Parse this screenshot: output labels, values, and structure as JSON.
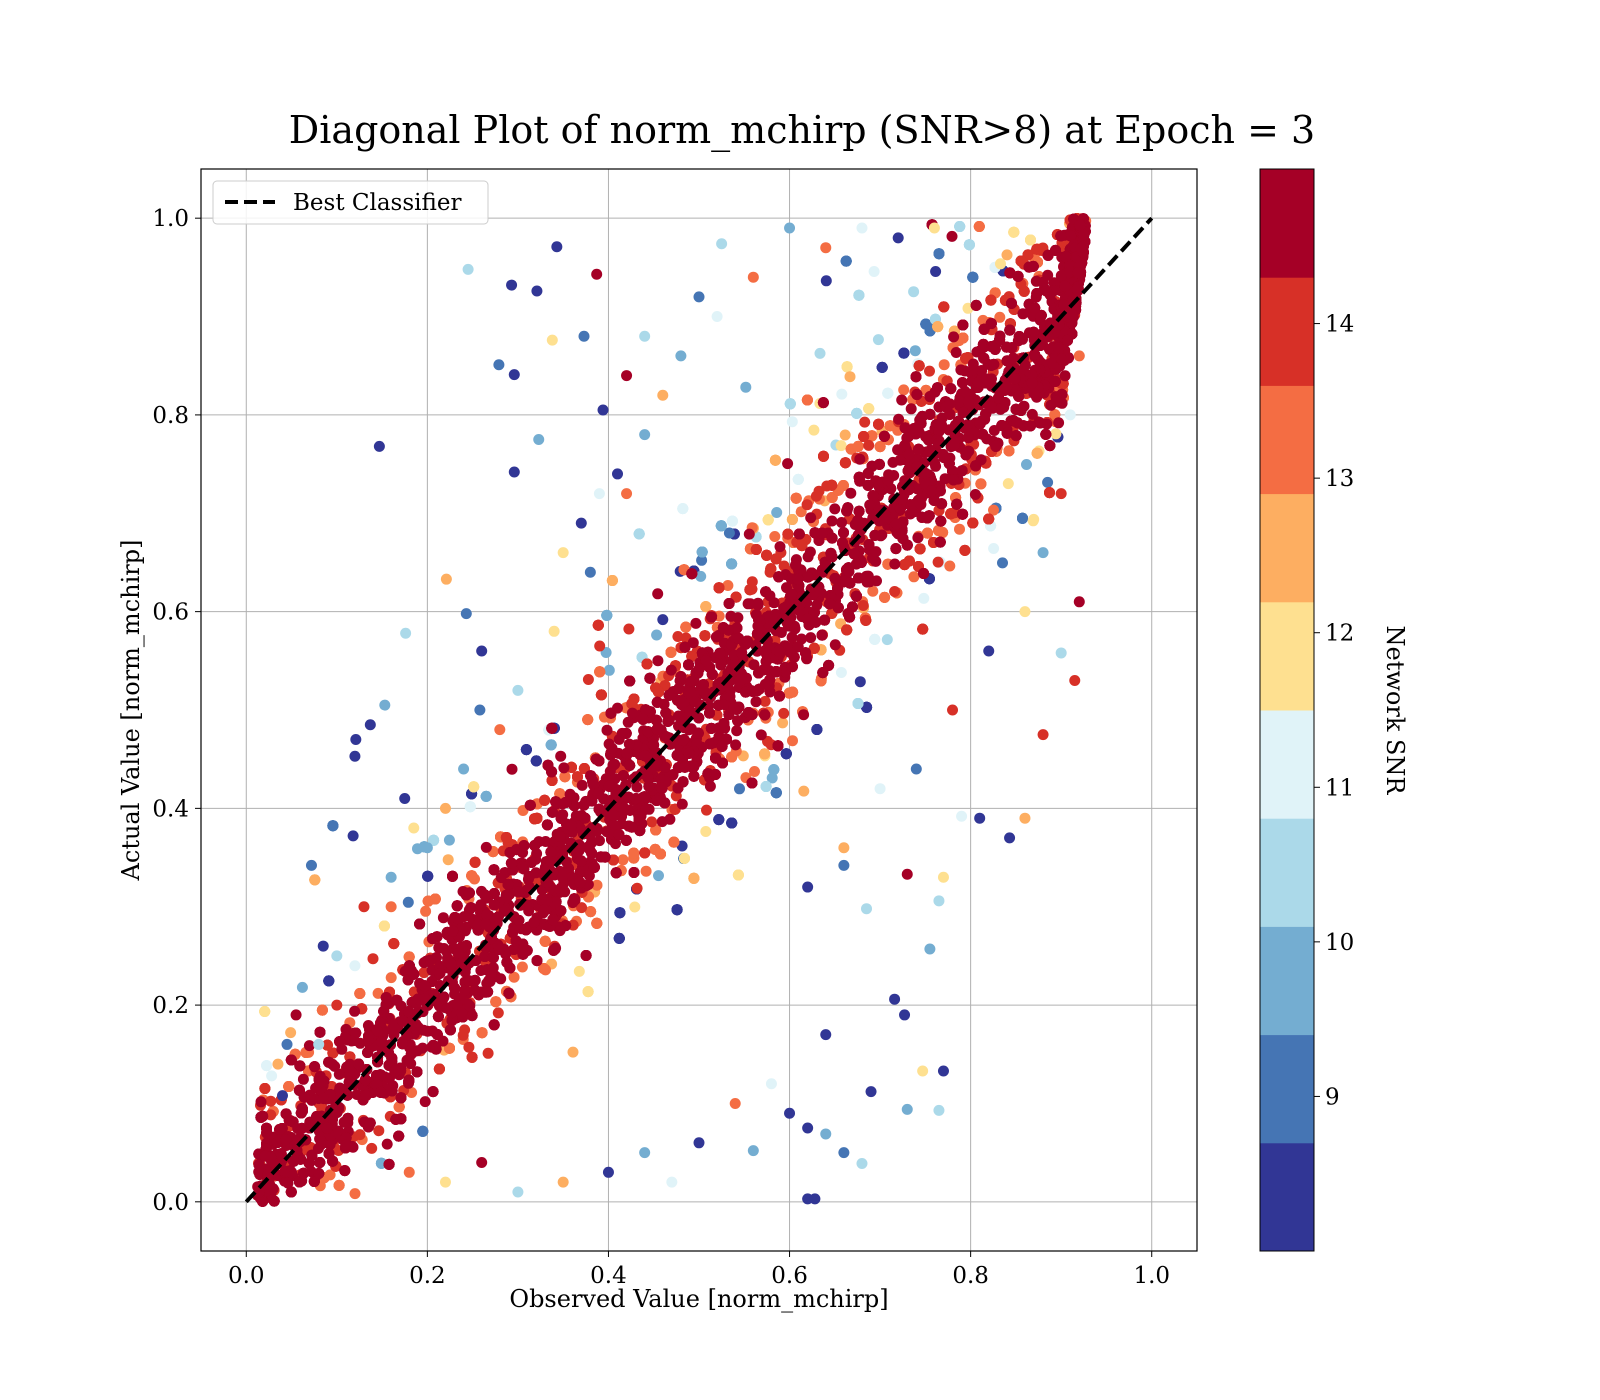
{
  "chart_data": {
    "type": "scatter",
    "title": "Diagonal Plot of norm_mchirp (SNR>8) at Epoch = 3",
    "xlabel": "Observed Value [norm_mchirp]",
    "ylabel": "Actual Value [norm_mchirp]",
    "xlim": [
      -0.05,
      1.05
    ],
    "ylim": [
      -0.05,
      1.05
    ],
    "xticks": [
      "0.0",
      "0.2",
      "0.4",
      "0.6",
      "0.8",
      "1.0"
    ],
    "yticks": [
      "0.0",
      "0.2",
      "0.4",
      "0.6",
      "0.8",
      "1.0"
    ],
    "grid": true,
    "legend": {
      "placement": "upper-left",
      "entries": [
        "Best Classifier"
      ]
    },
    "reference_line": {
      "name": "Best Classifier",
      "x": [
        0.0,
        1.0
      ],
      "y": [
        0.0,
        1.0
      ],
      "style": "dashed",
      "color": "#000000"
    },
    "colorbar": {
      "label": "Network SNR",
      "min": 8.0,
      "max": 15.0,
      "ticks": [
        9,
        10,
        11,
        12,
        13,
        14
      ],
      "tick_labels": [
        "9",
        "10",
        "11",
        "12",
        "13",
        "14"
      ],
      "colors": [
        "#313695",
        "#4575b4",
        "#74add1",
        "#abd9e9",
        "#e0f3f8",
        "#fee090",
        "#fdae61",
        "#f46d43",
        "#d73027",
        "#a50026"
      ]
    },
    "series": [
      {
        "color_by": "Network SNR",
        "points": [
          [
            0.147,
            0.768,
            8.3
          ],
          [
            0.245,
            0.948,
            10.4
          ],
          [
            0.343,
            0.971,
            8.2
          ],
          [
            0.293,
            0.932,
            8.1
          ],
          [
            0.387,
            0.943,
            14.9
          ],
          [
            0.321,
            0.926,
            8.3
          ],
          [
            0.279,
            0.851,
            9.2
          ],
          [
            0.296,
            0.841,
            8.2
          ],
          [
            0.323,
            0.775,
            10.1
          ],
          [
            0.394,
            0.805,
            8.4
          ],
          [
            0.296,
            0.742,
            8.3
          ],
          [
            0.221,
            0.633,
            12.8
          ],
          [
            0.176,
            0.578,
            10.5
          ],
          [
            0.243,
            0.598,
            8.9
          ],
          [
            0.153,
            0.505,
            9.8
          ],
          [
            0.121,
            0.47,
            8.5
          ],
          [
            0.137,
            0.485,
            8.3
          ],
          [
            0.12,
            0.453,
            8.1
          ],
          [
            0.118,
            0.372,
            8.3
          ],
          [
            0.072,
            0.342,
            9.1
          ],
          [
            0.062,
            0.218,
            9.5
          ],
          [
            0.049,
            0.172,
            12.6
          ],
          [
            0.028,
            0.128,
            10.9
          ],
          [
            0.04,
            0.108,
            8.4
          ],
          [
            0.05,
            0.03,
            14.7
          ],
          [
            0.56,
            0.052,
            9.9
          ],
          [
            0.62,
            0.075,
            8.1
          ],
          [
            0.64,
            0.069,
            9.6
          ],
          [
            0.69,
            0.112,
            8.4
          ],
          [
            0.716,
            0.206,
            8.3
          ],
          [
            0.727,
            0.19,
            8.1
          ],
          [
            0.77,
            0.133,
            8.2
          ],
          [
            0.747,
            0.133,
            12.2
          ],
          [
            0.765,
            0.093,
            10.6
          ],
          [
            0.73,
            0.094,
            9.7
          ],
          [
            0.68,
            0.039,
            10.5
          ],
          [
            0.66,
            0.05,
            9.3
          ],
          [
            0.64,
            0.17,
            8.2
          ],
          [
            0.62,
            0.003,
            8.2
          ],
          [
            0.628,
            0.003,
            8.4
          ],
          [
            0.843,
            0.37,
            8.6
          ],
          [
            0.81,
            0.39,
            8.2
          ],
          [
            0.79,
            0.392,
            11.3
          ],
          [
            0.77,
            0.33,
            11.5
          ],
          [
            0.765,
            0.306,
            10.4
          ],
          [
            0.755,
            0.257,
            9.8
          ],
          [
            0.685,
            0.298,
            10.3
          ],
          [
            0.66,
            0.342,
            8.8
          ],
          [
            0.73,
            0.333,
            14.8
          ],
          [
            0.915,
            0.53,
            13.8
          ],
          [
            0.9,
            0.558,
            10.2
          ],
          [
            0.92,
            0.61,
            14.9
          ],
          [
            0.88,
            0.475,
            14.2
          ],
          [
            0.86,
            0.39,
            12.3
          ],
          [
            0.525,
            0.974,
            10.3
          ],
          [
            0.5,
            0.92,
            8.9
          ],
          [
            0.44,
            0.88,
            10.7
          ],
          [
            0.42,
            0.84,
            14.4
          ],
          [
            0.41,
            0.74,
            8.3
          ],
          [
            0.39,
            0.72,
            11.1
          ],
          [
            0.37,
            0.69,
            8.5
          ],
          [
            0.35,
            0.66,
            12.1
          ],
          [
            0.338,
            0.876,
            11.8
          ],
          [
            0.373,
            0.88,
            9.2
          ],
          [
            0.26,
            0.56,
            8.2
          ],
          [
            0.258,
            0.5,
            8.9
          ],
          [
            0.175,
            0.41,
            8.1
          ],
          [
            0.185,
            0.38,
            11.6
          ],
          [
            0.16,
            0.33,
            9.4
          ],
          [
            0.13,
            0.3,
            13.8
          ],
          [
            0.1,
            0.25,
            10.6
          ],
          [
            0.085,
            0.26,
            8.2
          ],
          [
            0.055,
            0.19,
            14.3
          ],
          [
            0.045,
            0.16,
            9.3
          ],
          [
            0.035,
            0.14,
            12.4
          ],
          [
            0.6,
            0.09,
            8.3
          ],
          [
            0.58,
            0.12,
            10.8
          ],
          [
            0.54,
            0.1,
            13.1
          ],
          [
            0.5,
            0.06,
            8.5
          ],
          [
            0.47,
            0.02,
            11.4
          ],
          [
            0.44,
            0.05,
            9.5
          ],
          [
            0.4,
            0.03,
            8.7
          ],
          [
            0.35,
            0.02,
            12.6
          ],
          [
            0.3,
            0.01,
            10.2
          ],
          [
            0.26,
            0.04,
            14.6
          ],
          [
            0.22,
            0.02,
            11.9
          ],
          [
            0.18,
            0.03,
            13.4
          ],
          [
            0.62,
            0.32,
            8.4
          ],
          [
            0.66,
            0.36,
            12.7
          ],
          [
            0.7,
            0.42,
            10.9
          ],
          [
            0.74,
            0.44,
            9.1
          ],
          [
            0.78,
            0.5,
            13.7
          ],
          [
            0.82,
            0.56,
            8.6
          ],
          [
            0.86,
            0.6,
            12.2
          ],
          [
            0.88,
            0.66,
            9.9
          ],
          [
            0.9,
            0.72,
            14.1
          ],
          [
            0.91,
            0.8,
            11.2
          ],
          [
            0.92,
            0.86,
            13.3
          ],
          [
            0.6,
            0.99,
            9.7
          ],
          [
            0.64,
            0.97,
            12.9
          ],
          [
            0.68,
            0.99,
            10.8
          ],
          [
            0.72,
            0.98,
            8.5
          ],
          [
            0.76,
            0.99,
            11.7
          ],
          [
            0.56,
            0.94,
            13.6
          ],
          [
            0.52,
            0.9,
            11.1
          ],
          [
            0.48,
            0.86,
            9.4
          ],
          [
            0.46,
            0.82,
            12.4
          ],
          [
            0.44,
            0.78,
            10.1
          ],
          [
            0.42,
            0.72,
            13.2
          ],
          [
            0.38,
            0.64,
            9.0
          ],
          [
            0.34,
            0.58,
            12.0
          ],
          [
            0.3,
            0.52,
            10.4
          ],
          [
            0.28,
            0.48,
            13.0
          ],
          [
            0.24,
            0.44,
            9.6
          ],
          [
            0.22,
            0.4,
            12.8
          ],
          [
            0.2,
            0.36,
            10.0
          ],
          [
            0.16,
            0.3,
            13.5
          ],
          [
            0.12,
            0.24,
            11.0
          ],
          [
            0.1,
            0.2,
            13.9
          ],
          [
            0.08,
            0.16,
            10.7
          ]
        ]
      }
    ]
  }
}
